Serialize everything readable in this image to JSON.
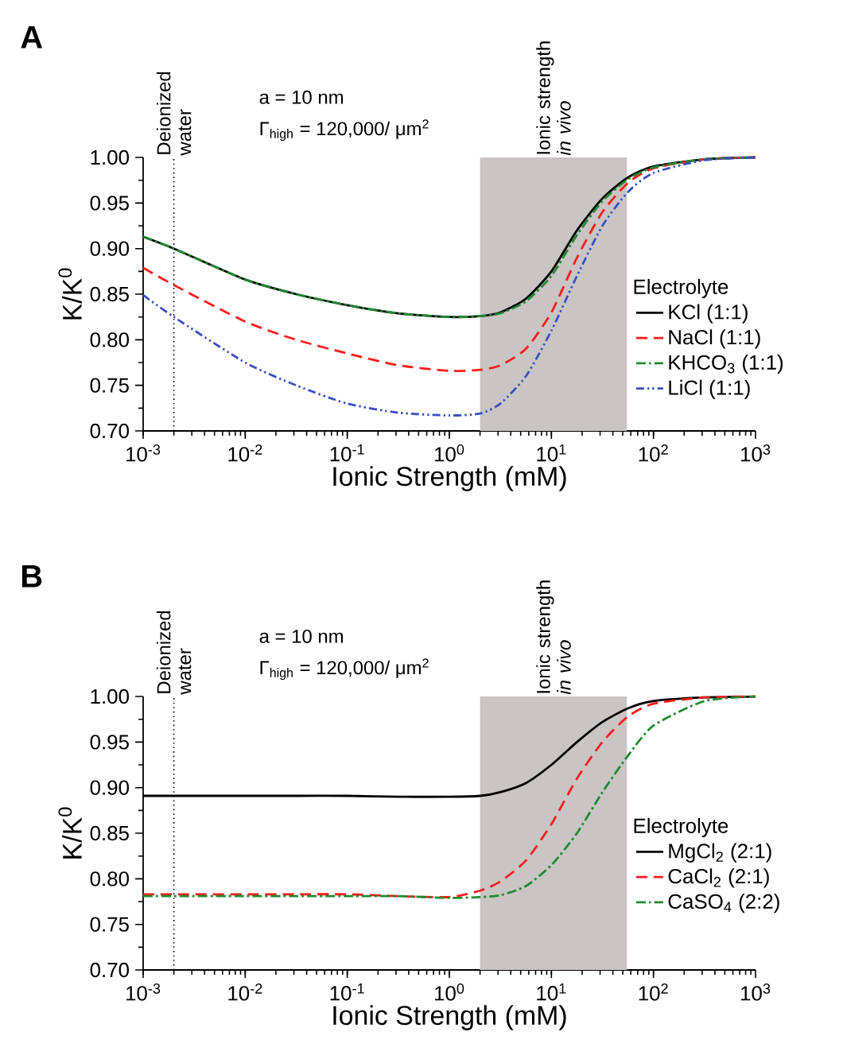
{
  "chart_data": [
    {
      "type": "line",
      "title": "A",
      "xlabel": "Ionic Strength (mM)",
      "ylabel": "K/K$^{0}$",
      "legend_title": "Electrolyte",
      "legend": "right",
      "log": "x",
      "marker": "none",
      "annotations": [
        "a = 10 nm",
        "Γ$_{high}$ = 120,000/ μm$^{2}$"
      ],
      "xlim": [
        0.001,
        1000
      ],
      "ylim": [
        0.7,
        1.0
      ],
      "xticks": [
        {
          "value": 0.001,
          "label": "10$^{-3}$"
        },
        {
          "value": 0.01,
          "label": "10$^{-2}$"
        },
        {
          "value": 0.1,
          "label": "10$^{-1}$"
        },
        {
          "value": 1,
          "label": "10$^{0}$"
        },
        {
          "value": 10,
          "label": "10$^{1}$"
        },
        {
          "value": 100,
          "label": "10$^{2}$"
        },
        {
          "value": 1000,
          "label": "10$^{3}$"
        }
      ],
      "yticks": [
        {
          "value": 0.7,
          "label": "0.70"
        },
        {
          "value": 0.75,
          "label": "0.75"
        },
        {
          "value": 0.8,
          "label": "0.80"
        },
        {
          "value": 0.85,
          "label": "0.85"
        },
        {
          "value": 0.9,
          "label": "0.90"
        },
        {
          "value": 0.95,
          "label": "0.95"
        },
        {
          "value": 1.0,
          "label": "1.00"
        }
      ],
      "ref_lines": [
        {
          "axis": "x",
          "value": 0.002,
          "label": "Deionized water",
          "color": "#000000",
          "line_style": "dotted"
        }
      ],
      "bands": [
        {
          "axis": "x",
          "from": 2,
          "to": 55,
          "label": "Ionic strength *in vivo*",
          "color": "#c9c5c5"
        }
      ],
      "x": [
        0.001,
        0.002,
        0.01,
        0.0316,
        0.1,
        0.316,
        1,
        2,
        3.16,
        5.62,
        10,
        17.8,
        31.6,
        56.2,
        100,
        316,
        1000
      ],
      "series": [
        {
          "name": "KCl (1:1)",
          "color": "#000000",
          "line_style": "solid",
          "values": [
            0.913,
            0.9,
            0.866,
            0.85,
            0.838,
            0.829,
            0.825,
            0.826,
            0.83,
            0.845,
            0.875,
            0.92,
            0.955,
            0.978,
            0.99,
            0.998,
            1.0
          ]
        },
        {
          "name": "NaCl (1:1)",
          "color": "#ff1a1a",
          "line_style": "dashed",
          "values": [
            0.879,
            0.86,
            0.82,
            0.8,
            0.785,
            0.772,
            0.766,
            0.767,
            0.772,
            0.79,
            0.83,
            0.89,
            0.94,
            0.972,
            0.988,
            0.998,
            1.0
          ]
        },
        {
          "name": "KHCO$_{3}$ (1:1)",
          "color": "#1f8a2e",
          "line_style": "dashdot",
          "values": [
            0.913,
            0.9,
            0.866,
            0.85,
            0.838,
            0.829,
            0.825,
            0.826,
            0.829,
            0.842,
            0.87,
            0.915,
            0.952,
            0.976,
            0.989,
            0.998,
            1.0
          ]
        },
        {
          "name": "LiCl (1:1)",
          "color": "#3a4fc0",
          "line_style": "dashdotdot",
          "values": [
            0.849,
            0.825,
            0.775,
            0.75,
            0.73,
            0.72,
            0.717,
            0.719,
            0.73,
            0.76,
            0.81,
            0.87,
            0.925,
            0.962,
            0.983,
            0.997,
            1.0
          ]
        }
      ]
    },
    {
      "type": "line",
      "title": "B",
      "xlabel": "Ionic Strength (mM)",
      "ylabel": "K/K$^{0}$",
      "legend_title": "Electrolyte",
      "legend": "right",
      "log": "x",
      "marker": "none",
      "annotations": [
        "a = 10 nm",
        "Γ$_{high}$ = 120,000/ μm$^{2}$"
      ],
      "xlim": [
        0.001,
        1000
      ],
      "ylim": [
        0.7,
        1.0
      ],
      "xticks": [
        {
          "value": 0.001,
          "label": "10$^{-3}$"
        },
        {
          "value": 0.01,
          "label": "10$^{-2}$"
        },
        {
          "value": 0.1,
          "label": "10$^{-1}$"
        },
        {
          "value": 1,
          "label": "10$^{0}$"
        },
        {
          "value": 10,
          "label": "10$^{1}$"
        },
        {
          "value": 100,
          "label": "10$^{2}$"
        },
        {
          "value": 1000,
          "label": "10$^{3}$"
        }
      ],
      "yticks": [
        {
          "value": 0.7,
          "label": "0.70"
        },
        {
          "value": 0.75,
          "label": "0.75"
        },
        {
          "value": 0.8,
          "label": "0.80"
        },
        {
          "value": 0.85,
          "label": "0.85"
        },
        {
          "value": 0.9,
          "label": "0.90"
        },
        {
          "value": 0.95,
          "label": "0.95"
        },
        {
          "value": 1.0,
          "label": "1.00"
        }
      ],
      "ref_lines": [
        {
          "axis": "x",
          "value": 0.002,
          "label": "Deionized water",
          "color": "#000000",
          "line_style": "dotted"
        }
      ],
      "bands": [
        {
          "axis": "x",
          "from": 2,
          "to": 55,
          "label": "Ionic strength *in vivo*",
          "color": "#c9c5c5"
        }
      ],
      "x": [
        0.001,
        0.002,
        0.01,
        0.0316,
        0.1,
        0.316,
        1,
        2,
        3.16,
        5.62,
        10,
        17.8,
        31.6,
        56.2,
        100,
        316,
        1000
      ],
      "series": [
        {
          "name": "MgCl$_{2}$ (2:1)",
          "color": "#000000",
          "line_style": "solid",
          "values": [
            0.891,
            0.891,
            0.891,
            0.891,
            0.891,
            0.89,
            0.89,
            0.891,
            0.895,
            0.905,
            0.925,
            0.95,
            0.972,
            0.987,
            0.995,
            0.999,
            1.0
          ]
        },
        {
          "name": "CaCl$_{2}$ (2:1)",
          "color": "#ff1a1a",
          "line_style": "dashed",
          "values": [
            0.783,
            0.783,
            0.783,
            0.783,
            0.783,
            0.781,
            0.78,
            0.787,
            0.797,
            0.82,
            0.86,
            0.91,
            0.95,
            0.978,
            0.992,
            0.999,
            1.0
          ]
        },
        {
          "name": "CaSO$_{4}$ (2:2)",
          "color": "#1f8a2e",
          "line_style": "dashdot",
          "values": [
            0.781,
            0.781,
            0.781,
            0.781,
            0.781,
            0.781,
            0.779,
            0.78,
            0.782,
            0.792,
            0.815,
            0.85,
            0.895,
            0.935,
            0.968,
            0.995,
            1.0
          ]
        }
      ]
    }
  ]
}
